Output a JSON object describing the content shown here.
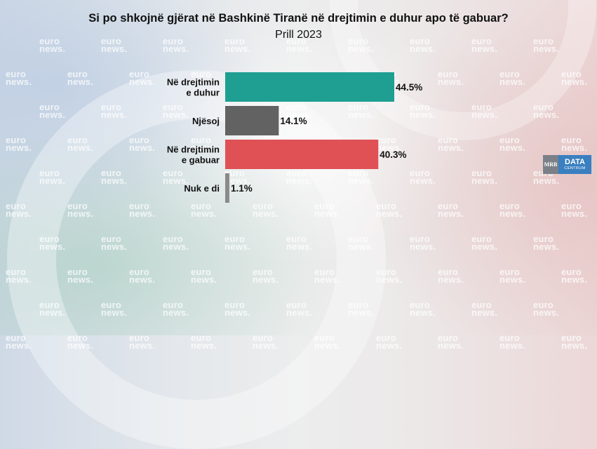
{
  "watermark": {
    "line1": "euro",
    "line2": "news."
  },
  "logo": {
    "left": "MRB",
    "right_main": "DATA",
    "right_sub": "CENTRUM"
  },
  "chart_data": {
    "type": "bar",
    "orientation": "horizontal",
    "title": "Si po shkojnë gjërat në Bashkinë Tiranë në drejtimin e duhur apo të gabuar?",
    "subtitle": "Prill 2023",
    "categories": [
      [
        "Në drejtimin",
        "e duhur"
      ],
      [
        "Njësoj"
      ],
      [
        "Në drejtimin",
        "e gabuar"
      ],
      [
        "Nuk e di"
      ]
    ],
    "values": [
      44.5,
      14.1,
      40.3,
      1.1
    ],
    "value_labels": [
      "44.5%",
      "14.1%",
      "40.3%",
      "1.1%"
    ],
    "colors": [
      "#1e9f92",
      "#626262",
      "#e05156",
      "#8a8a8a"
    ],
    "xlim": [
      0,
      44.5
    ],
    "grid": false,
    "legend": "none"
  }
}
